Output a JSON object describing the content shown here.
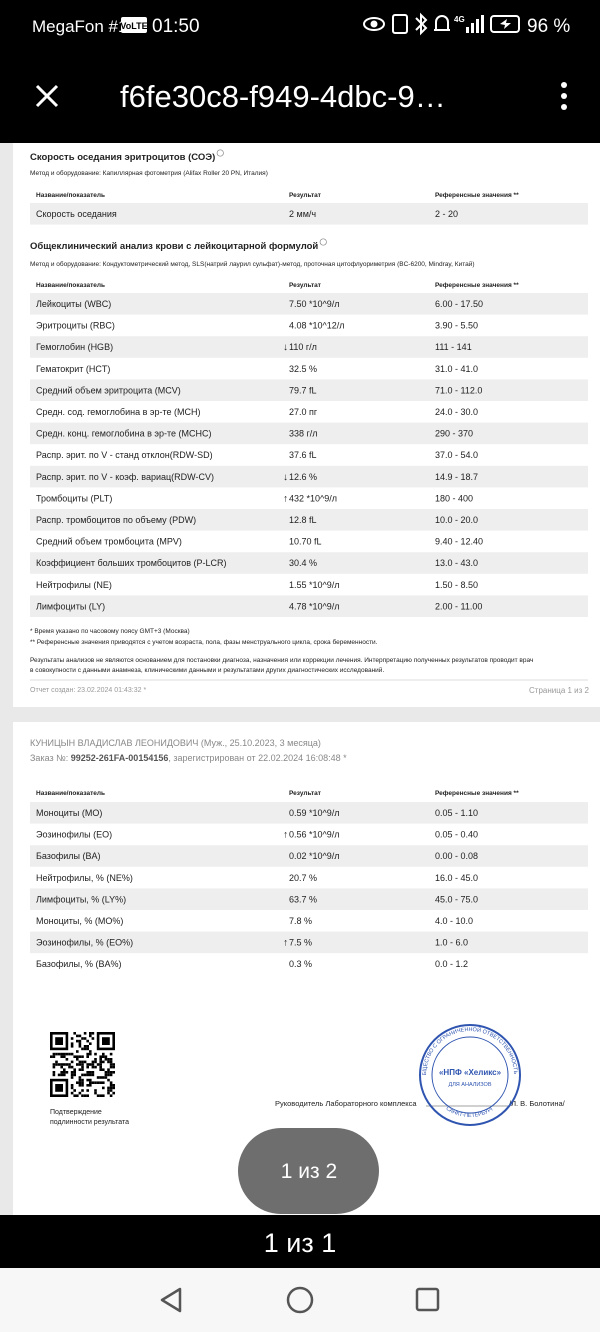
{
  "status_bar": {
    "carrier": "MegaFon #1",
    "volte": "VoLTE",
    "time": "01:50",
    "network": "4G",
    "battery": "96 %"
  },
  "toolbar": {
    "title": "f6fe30c8-f949-4dbc-9…"
  },
  "page1": {
    "sections": [
      {
        "title": "Скорость оседания эритроцитов (СОЭ)",
        "method": "Метод и оборудование: Капиллярная фотометрия (Alifax Roller 20 PN, Италия)",
        "header": [
          "Название/показатель",
          "Результат",
          "Референсные значения **"
        ],
        "rows": [
          {
            "name": "Скорость оседания",
            "result": "2 мм/ч",
            "ref": "2 - 20"
          }
        ]
      },
      {
        "title": "Общеклинический анализ крови с лейкоцитарной формулой",
        "method": "Метод и оборудование: Кондуктометрический метод, SLS(натрий лаурил сульфат)-метод, проточная цитофлуориметрия (BC-6200, Mindray, Китай)",
        "header": [
          "Название/показатель",
          "Результат",
          "Референсные значения **"
        ],
        "rows": [
          {
            "name": "Лейкоциты (WBC)",
            "result": "7.50 *10^9/л",
            "ref": "6.00 - 17.50"
          },
          {
            "name": "Эритроциты (RBC)",
            "result": "4.08 *10^12/л",
            "ref": "3.90 - 5.50"
          },
          {
            "name": "Гемоглобин (HGB)",
            "flag": "↓",
            "result": "110 г/л",
            "ref": "111 - 141"
          },
          {
            "name": "Гематокрит (HCT)",
            "result": "32.5 %",
            "ref": "31.0 - 41.0"
          },
          {
            "name": "Средний объем эритроцита (MCV)",
            "result": "79.7 fL",
            "ref": "71.0 - 112.0"
          },
          {
            "name": "Средн. сод. гемоглобина в эр-те (MCH)",
            "result": "27.0 пг",
            "ref": "24.0 - 30.0"
          },
          {
            "name": "Средн. конц. гемоглобина в эр-те (MCHC)",
            "result": "338 г/л",
            "ref": "290 - 370"
          },
          {
            "name": "Распр. эрит. по V - станд отклон(RDW-SD)",
            "result": "37.6 fL",
            "ref": "37.0 - 54.0"
          },
          {
            "name": "Распр. эрит. по V - коэф. вариац(RDW-CV)",
            "flag": "↓",
            "result": "12.6 %",
            "ref": "14.9 - 18.7"
          },
          {
            "name": "Тромбоциты (PLT)",
            "flag": "↑",
            "result": "432 *10^9/л",
            "ref": "180 - 400"
          },
          {
            "name": "Распр. тромбоцитов по объему (PDW)",
            "result": "12.8 fL",
            "ref": "10.0 - 20.0"
          },
          {
            "name": "Средний объем тромбоцита (MPV)",
            "result": "10.70 fL",
            "ref": "9.40 - 12.40"
          },
          {
            "name": "Коэффициент больших тромбоцитов (P-LCR)",
            "result": "30.4 %",
            "ref": "13.0 - 43.0"
          },
          {
            "name": "Нейтрофилы (NE)",
            "result": "1.55 *10^9/л",
            "ref": "1.50 - 8.50"
          },
          {
            "name": "Лимфоциты (LY)",
            "result": "4.78 *10^9/л",
            "ref": "2.00 - 11.00"
          }
        ]
      }
    ],
    "footnotes": [
      "* Время указано по часовому поясу GMT+3 (Москва)",
      "** Референсные значения приводятся с учетом возраста, пола, фазы менструального цикла, срока беременности."
    ],
    "disclaimer": [
      "Результаты анализов не являются основанием для постановки диагноза, назначения или коррекции лечения. Интерпретацию полученных результатов проводит врач",
      "в совокупности с данными анамнеза, клиническими данными и результатами других диагностических исследований."
    ],
    "created": "Отчет создан: 23.02.2024 01:43:32 *",
    "page_number": "Страница 1 из 2"
  },
  "page2": {
    "patient": "КУНИЦЫН ВЛАДИСЛАВ ЛЕОНИДОВИЧ (Муж., 25.10.2023, 3 месяца)",
    "order": {
      "label": "Заказ №: ",
      "number": "99252-261FA-00154156",
      "suffix": ", зарегистрирован от 22.02.2024 16:08:48 *"
    },
    "table": {
      "header": [
        "Название/показатель",
        "Результат",
        "Референсные значения **"
      ],
      "rows": [
        {
          "name": "Моноциты (MO)",
          "result": "0.59 *10^9/л",
          "ref": "0.05 - 1.10"
        },
        {
          "name": "Эозинофилы (EO)",
          "flag": "↑",
          "result": "0.56 *10^9/л",
          "ref": "0.05 - 0.40"
        },
        {
          "name": "Базофилы (BA)",
          "result": "0.02 *10^9/л",
          "ref": "0.00 - 0.08"
        },
        {
          "name": "Нейтрофилы, % (NE%)",
          "result": "20.7 %",
          "ref": "16.0 - 45.0"
        },
        {
          "name": "Лимфоциты, % (LY%)",
          "result": "63.7 %",
          "ref": "45.0 - 75.0"
        },
        {
          "name": "Моноциты, % (MO%)",
          "result": "7.8 %",
          "ref": "4.0 - 10.0"
        },
        {
          "name": "Эозинофилы, % (EO%)",
          "flag": "↑",
          "result": "7.5 %",
          "ref": "1.0 - 6.0"
        },
        {
          "name": "Базофилы, % (BA%)",
          "result": "0.3 %",
          "ref": "0.0 - 1.2"
        }
      ]
    },
    "qr_caption": [
      "Подтверждение",
      "подлинности результата"
    ],
    "signature": {
      "role": "Руководитель Лабораторного комплекса",
      "name": "/Л. В. Болотина/"
    },
    "stamp": {
      "ring_top": "ОБЩЕСТВО С ОГРАНИЧЕННОЙ ОТВЕТСТВЕННОСТЬЮ",
      "ring_bottom": "САНКТ-ПЕТЕРБУРГ",
      "name": "«НПФ «Хеликс»",
      "subtitle": "ДЛЯ АНАЛИЗОВ"
    }
  },
  "page_indicator": "1 из 2",
  "bottom_bar": "1 из 1"
}
